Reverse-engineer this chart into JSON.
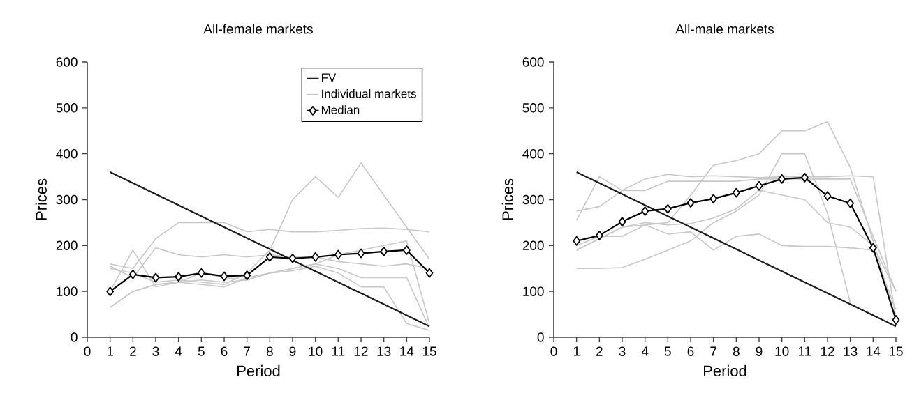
{
  "chart_data": [
    {
      "type": "line",
      "title": "All-female markets",
      "xlabel": "Period",
      "ylabel": "Prices",
      "x": [
        1,
        2,
        3,
        4,
        5,
        6,
        7,
        8,
        9,
        10,
        11,
        12,
        13,
        14,
        15
      ],
      "xlim": [
        0,
        15
      ],
      "xticks": [
        0,
        1,
        2,
        3,
        4,
        5,
        6,
        7,
        8,
        9,
        10,
        11,
        12,
        13,
        14,
        15
      ],
      "ylim": [
        0,
        600
      ],
      "yticks": [
        0,
        100,
        200,
        300,
        400,
        500,
        600
      ],
      "legend": "top right",
      "series": [
        {
          "color": "#c8c8c8",
          "marker": "none",
          "values": [
            160,
            150,
            215,
            250,
            250,
            250,
            230,
            235,
            230,
            230,
            233,
            237,
            238,
            235,
            230
          ]
        },
        {
          "color": "#c8c8c8",
          "marker": "none",
          "values": [
            155,
            130,
            195,
            180,
            175,
            180,
            175,
            180,
            175,
            175,
            165,
            160,
            155,
            160,
            150
          ]
        },
        {
          "color": "#c8c8c8",
          "marker": "none",
          "values": [
            65,
            100,
            115,
            120,
            115,
            110,
            130,
            140,
            150,
            160,
            180,
            190,
            200,
            210,
            30
          ]
        },
        {
          "color": "#c8c8c8",
          "marker": "none",
          "values": [
            100,
            190,
            110,
            120,
            125,
            120,
            125,
            140,
            145,
            155,
            140,
            110,
            110,
            30,
            15
          ]
        },
        {
          "color": "#c8c8c8",
          "marker": "none",
          "values": [
            65,
            100,
            115,
            120,
            140,
            130,
            125,
            140,
            150,
            160,
            150,
            130,
            130,
            130,
            20
          ]
        },
        {
          "name": "FV",
          "color": "#1a1a1a",
          "marker": "none",
          "values": [
            360,
            336,
            312,
            288,
            264,
            240,
            216,
            192,
            168,
            144,
            120,
            96,
            72,
            48,
            24
          ]
        },
        {
          "name": "Individual markets",
          "color": "#c8c8c8",
          "marker": "none",
          "values": [
            150,
            140,
            120,
            125,
            120,
            115,
            140,
            190,
            300,
            350,
            305,
            380,
            310,
            240,
            170
          ]
        },
        {
          "name": "Median",
          "color": "#000000",
          "marker": "diamond",
          "values": [
            100,
            137,
            130,
            132,
            140,
            133,
            135,
            175,
            172,
            175,
            180,
            183,
            187,
            190,
            140
          ]
        }
      ]
    },
    {
      "type": "line",
      "title": "All-male markets",
      "xlabel": "Period",
      "ylabel": "Prices",
      "x": [
        1,
        2,
        3,
        4,
        5,
        6,
        7,
        8,
        9,
        10,
        11,
        12,
        13,
        14,
        15
      ],
      "xlim": [
        0,
        15
      ],
      "xticks": [
        0,
        1,
        2,
        3,
        4,
        5,
        6,
        7,
        8,
        9,
        10,
        11,
        12,
        13,
        14,
        15
      ],
      "ylim": [
        0,
        600
      ],
      "yticks": [
        0,
        100,
        200,
        300,
        400,
        500,
        600
      ],
      "series": [
        {
          "color": "#c8c8c8",
          "marker": "none",
          "values": [
            275,
            285,
            320,
            345,
            355,
            350,
            352,
            350,
            348,
            350,
            350,
            350,
            352,
            350,
            40
          ]
        },
        {
          "color": "#c8c8c8",
          "marker": "none",
          "values": [
            255,
            350,
            320,
            320,
            340,
            340,
            340,
            340,
            345,
            345,
            345,
            345,
            345,
            220,
            100
          ]
        },
        {
          "color": "#c8c8c8",
          "marker": "none",
          "values": [
            150,
            150,
            152,
            170,
            190,
            210,
            250,
            275,
            310,
            400,
            400,
            270,
            75,
            null,
            null
          ]
        },
        {
          "color": "#c8c8c8",
          "marker": "none",
          "values": [
            190,
            215,
            240,
            245,
            250,
            310,
            375,
            385,
            400,
            450,
            450,
            470,
            370,
            210,
            40
          ]
        },
        {
          "color": "#c8c8c8",
          "marker": "none",
          "values": [
            200,
            220,
            220,
            245,
            225,
            230,
            190,
            220,
            225,
            200,
            198,
            198,
            195,
            190,
            60
          ]
        },
        {
          "color": "#c8c8c8",
          "marker": "none",
          "values": [
            190,
            215,
            240,
            250,
            245,
            248,
            260,
            280,
            320,
            310,
            300,
            250,
            240,
            200,
            100
          ]
        },
        {
          "color": "#1a1a1a",
          "marker": "none",
          "values": [
            360,
            336,
            312,
            288,
            264,
            240,
            216,
            192,
            168,
            144,
            120,
            96,
            72,
            48,
            24
          ]
        },
        {
          "color": "#000000",
          "marker": "diamond",
          "values": [
            210,
            222,
            252,
            275,
            280,
            293,
            302,
            315,
            330,
            345,
            348,
            308,
            292,
            195,
            38
          ]
        }
      ]
    }
  ]
}
